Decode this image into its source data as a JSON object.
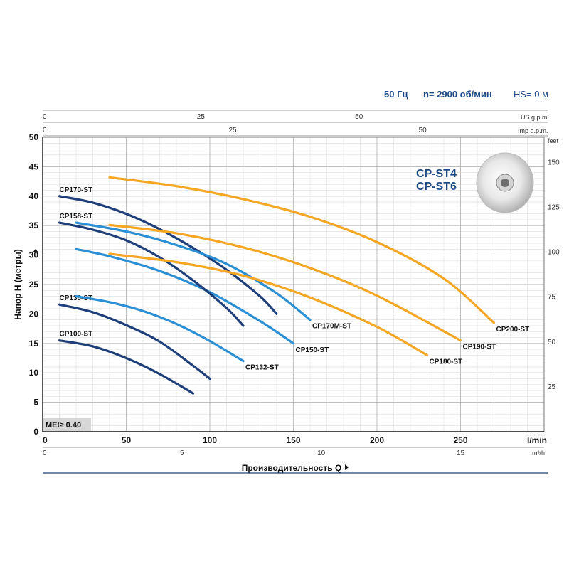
{
  "header": {
    "frequency": "50 Гц",
    "speed": "n= 2900 об/мин",
    "hs": "HS= 0 м"
  },
  "model": {
    "line1": "CP-ST4",
    "line2": "CP-ST6"
  },
  "mei_label": "MEI≥ 0.40",
  "colors": {
    "dark_blue": "#1f3f7a",
    "mid_blue": "#2a8fd4",
    "orange": "#f5a623",
    "title_blue": "#1d4a86"
  },
  "chart_data": {
    "type": "line",
    "x_unit": "l/min",
    "y_unit": "m",
    "xlim": [
      0,
      300
    ],
    "ylim": [
      0,
      50
    ],
    "grid": true,
    "ylabel": "Напор H (метры)",
    "xlabel": "Производительность Q",
    "x_ticks": [
      "0",
      "50",
      "100",
      "150",
      "200",
      "250",
      "l/min"
    ],
    "y_ticks": [
      "0",
      "5",
      "10",
      "15",
      "20",
      "25",
      "30",
      "35",
      "40",
      "45",
      "50"
    ],
    "feet_ticks": [
      "25",
      "50",
      "75",
      "100",
      "125",
      "150"
    ],
    "feet_unit": "feet",
    "m3h_ticks": [
      "0",
      "5",
      "10",
      "15"
    ],
    "m3h_unit": "m³/h",
    "us_gpm_ticks": [
      "0",
      "25",
      "50"
    ],
    "us_gpm_unit": "US g.p.m.",
    "imp_gpm_ticks": [
      "0",
      "25",
      "50"
    ],
    "imp_gpm_unit": "Imp g.p.m.",
    "series": [
      {
        "name": "CP100-ST",
        "color": "#1f3f7a",
        "x": [
          10,
          30,
          50,
          70,
          90
        ],
        "y": [
          15.5,
          14.5,
          12.5,
          9.8,
          6.5
        ]
      },
      {
        "name": "CP130-ST",
        "color": "#1f3f7a",
        "x": [
          10,
          30,
          50,
          70,
          90,
          100
        ],
        "y": [
          21.6,
          20.3,
          18.1,
          15.3,
          11.2,
          9
        ]
      },
      {
        "name": "CP132-ST",
        "color": "#2a8fd4",
        "x": [
          20,
          40,
          60,
          80,
          100,
          120
        ],
        "y": [
          23,
          22,
          20.5,
          18.3,
          15.4,
          12
        ]
      },
      {
        "name": "CP150-ST",
        "color": "#2a8fd4",
        "x": [
          20,
          40,
          70,
          100,
          130,
          150
        ],
        "y": [
          31,
          29.8,
          27.3,
          23.7,
          18.8,
          15
        ]
      },
      {
        "name": "CP158-ST",
        "color": "#1f3f7a",
        "x": [
          10,
          30,
          50,
          70,
          90,
          110,
          120
        ],
        "y": [
          35.5,
          34.3,
          32.5,
          29.6,
          25.7,
          21,
          18
        ]
      },
      {
        "name": "CP170-ST",
        "color": "#1f3f7a",
        "x": [
          10,
          30,
          50,
          70,
          90,
          110,
          130,
          140
        ],
        "y": [
          40,
          38.9,
          37,
          34.4,
          31.2,
          27.5,
          23,
          20
        ]
      },
      {
        "name": "CP170M-ST",
        "color": "#2a8fd4",
        "x": [
          20,
          50,
          80,
          110,
          140,
          160
        ],
        "y": [
          35.5,
          34,
          31.7,
          28.5,
          23.5,
          19
        ]
      },
      {
        "name": "CP180-ST",
        "color": "#f5a623",
        "x": [
          40,
          80,
          120,
          160,
          200,
          230
        ],
        "y": [
          30.2,
          28.8,
          26.5,
          22.8,
          17.8,
          13
        ]
      },
      {
        "name": "CP190-ST",
        "color": "#f5a623",
        "x": [
          40,
          80,
          120,
          160,
          200,
          250
        ],
        "y": [
          35.1,
          33.7,
          31.3,
          27.8,
          23.1,
          15.5
        ]
      },
      {
        "name": "CP200-ST",
        "color": "#f5a623",
        "x": [
          40,
          80,
          120,
          160,
          200,
          240,
          270
        ],
        "y": [
          43.2,
          41.7,
          39.5,
          36.5,
          32.2,
          26,
          18.5
        ]
      }
    ]
  }
}
